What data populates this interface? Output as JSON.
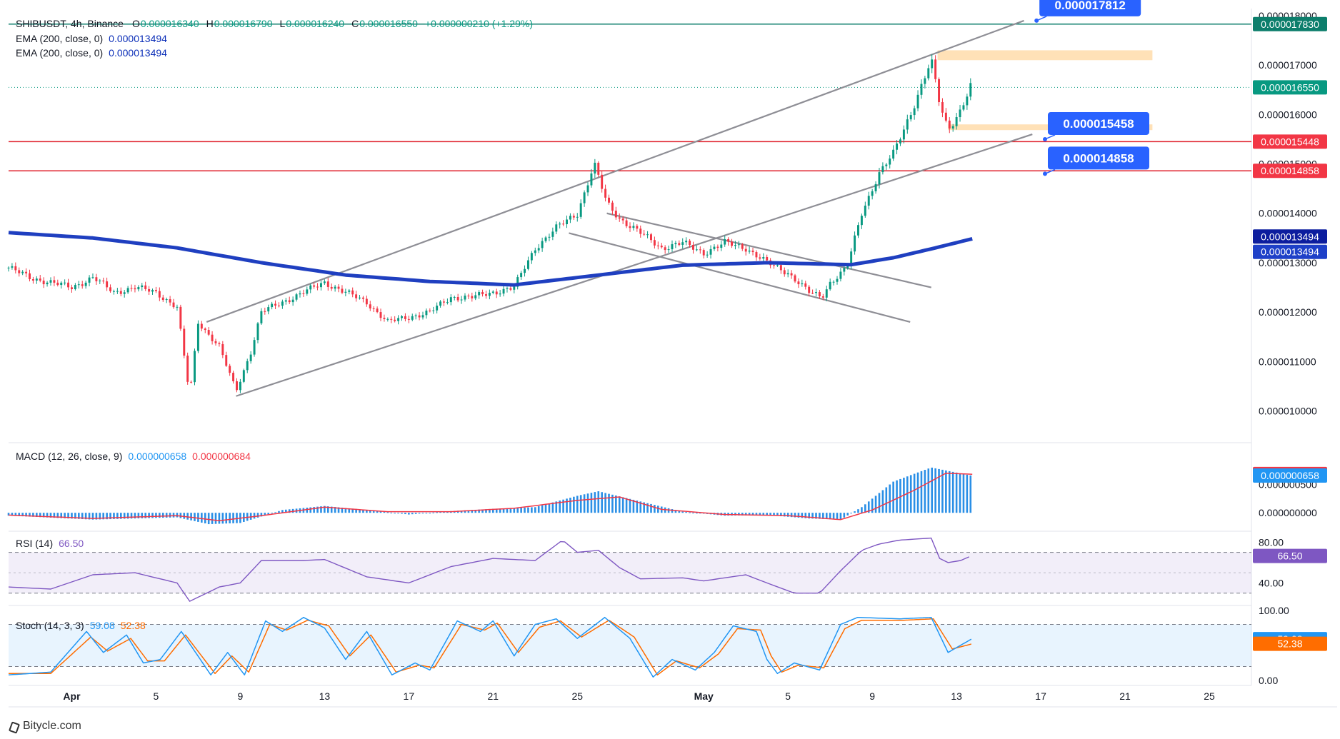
{
  "chart_data": [
    {
      "type": "candlestick",
      "panel": "price",
      "symbol": "SHIBUSDT",
      "interval": "4h",
      "exchange": "Binance",
      "header_line": "SHIBUSDT, 4h, Binance",
      "ohlc": {
        "o_label": "O",
        "o": "0.000016340",
        "h_label": "H",
        "h": "0.000016790",
        "l_label": "L",
        "l": "0.000016240",
        "c_label": "C",
        "c": "0.000016550",
        "change": "+0.000000210 (+1.29%)"
      },
      "indicators": [
        {
          "label": "EMA (200, close, 0)",
          "value": "0.000013494",
          "color": "#0c2fb8"
        },
        {
          "label": "EMA (200, close, 0)",
          "value": "0.000013494",
          "color": "#0c2fb8"
        }
      ],
      "ylim": [
        9.4e-06,
        1.8e-05
      ],
      "y_ticks": [
        "0.000018000",
        "0.000017000",
        "0.000016000",
        "0.000015000",
        "0.000014000",
        "0.000013000",
        "0.000012000",
        "0.000011000",
        "0.000010000"
      ],
      "x_ticks": [
        {
          "label": "Apr",
          "day": 1
        },
        {
          "label": "5",
          "day": 5
        },
        {
          "label": "9",
          "day": 9
        },
        {
          "label": "13",
          "day": 13
        },
        {
          "label": "17",
          "day": 17
        },
        {
          "label": "21",
          "day": 21
        },
        {
          "label": "25",
          "day": 25
        },
        {
          "label": "May",
          "day": 31
        },
        {
          "label": "5",
          "day": 35
        },
        {
          "label": "9",
          "day": 39
        },
        {
          "label": "13",
          "day": 43
        },
        {
          "label": "17",
          "day": 47
        },
        {
          "label": "21",
          "day": 51
        },
        {
          "label": "25",
          "day": 55
        }
      ],
      "x_range_days": [
        -2,
        57
      ],
      "x_note": "day index counted from Apr 1 (May 1 = 31)",
      "close_path": [
        [
          -2,
          1.29e-05
        ],
        [
          -1,
          1.27e-05
        ],
        [
          0,
          1.26e-05
        ],
        [
          1,
          1.25e-05
        ],
        [
          2,
          1.27e-05
        ],
        [
          3,
          1.24e-05
        ],
        [
          4,
          1.25e-05
        ],
        [
          5,
          1.24e-05
        ],
        [
          6,
          1.21e-05
        ],
        [
          6.6,
          1.03e-05
        ],
        [
          7,
          1.18e-05
        ],
        [
          8,
          1.13e-05
        ],
        [
          8.8,
          1.04e-05
        ],
        [
          9.5,
          1.12e-05
        ],
        [
          10,
          1.2e-05
        ],
        [
          11,
          1.22e-05
        ],
        [
          12,
          1.24e-05
        ],
        [
          13,
          1.26e-05
        ],
        [
          14,
          1.24e-05
        ],
        [
          15,
          1.22e-05
        ],
        [
          16,
          1.18e-05
        ],
        [
          17,
          1.19e-05
        ],
        [
          18,
          1.2e-05
        ],
        [
          19,
          1.23e-05
        ],
        [
          20,
          1.23e-05
        ],
        [
          21,
          1.24e-05
        ],
        [
          22,
          1.25e-05
        ],
        [
          23,
          1.33e-05
        ],
        [
          24,
          1.37e-05
        ],
        [
          25,
          1.4e-05
        ],
        [
          25.8,
          1.5e-05
        ],
        [
          26.4,
          1.42e-05
        ],
        [
          27,
          1.39e-05
        ],
        [
          28,
          1.36e-05
        ],
        [
          29,
          1.33e-05
        ],
        [
          30,
          1.34e-05
        ],
        [
          31,
          1.32e-05
        ],
        [
          32,
          1.34e-05
        ],
        [
          33,
          1.33e-05
        ],
        [
          34,
          1.3e-05
        ],
        [
          35,
          1.28e-05
        ],
        [
          36,
          1.24e-05
        ],
        [
          36.6,
          1.23e-05
        ],
        [
          37,
          1.26e-05
        ],
        [
          37.8,
          1.29e-05
        ],
        [
          38.5,
          1.4e-05
        ],
        [
          39.3,
          1.48e-05
        ],
        [
          40,
          1.52e-05
        ],
        [
          40.8,
          1.6e-05
        ],
        [
          41.8,
          1.71e-05
        ],
        [
          42.2,
          1.62e-05
        ],
        [
          42.6,
          1.57e-05
        ],
        [
          43.2,
          1.61e-05
        ],
        [
          43.7,
          1.66e-05
        ]
      ],
      "ema_path": [
        [
          -2,
          1.361e-05
        ],
        [
          2,
          1.35e-05
        ],
        [
          6,
          1.33e-05
        ],
        [
          10,
          1.3e-05
        ],
        [
          14,
          1.275e-05
        ],
        [
          18,
          1.262e-05
        ],
        [
          22,
          1.255e-05
        ],
        [
          26,
          1.275e-05
        ],
        [
          30,
          1.295e-05
        ],
        [
          34,
          1.3e-05
        ],
        [
          38,
          1.296e-05
        ],
        [
          40,
          1.31e-05
        ],
        [
          42,
          1.33e-05
        ],
        [
          43.8,
          1.349e-05
        ]
      ],
      "trendlines": [
        {
          "name": "upper-channel",
          "from": [
            7.4,
            1.18e-05
          ],
          "to": [
            46.2,
            1.79e-05
          ]
        },
        {
          "name": "lower-channel",
          "from": [
            8.8,
            1.03e-05
          ],
          "to": [
            46.6,
            1.56e-05
          ]
        },
        {
          "name": "falling-wedge-upper",
          "from": [
            26.4,
            1.4e-05
          ],
          "to": [
            41.8,
            1.25e-05
          ]
        },
        {
          "name": "falling-wedge-lower",
          "from": [
            24.6,
            1.36e-05
          ],
          "to": [
            40.8,
            1.18e-05
          ]
        }
      ],
      "horizontal_levels": [
        {
          "value": 1.783e-05,
          "label": "0.000017830",
          "color": "#0d7e6c"
        },
        {
          "value": 1.545e-05,
          "label": "0.000015448",
          "color": "#e0202b"
        },
        {
          "value": 1.486e-05,
          "label": "0.000014858",
          "color": "#e0202b"
        }
      ],
      "zones": [
        {
          "from": [
            42.1,
            1.71e-05
          ],
          "to": [
            52.3,
            1.73e-05
          ],
          "color": "#ffdcaa"
        },
        {
          "from": [
            42.6,
            1.57e-05
          ],
          "to": [
            52.3,
            1.58e-05
          ],
          "color": "#ffdcaa"
        }
      ],
      "callouts": [
        {
          "label": "0.000017812",
          "anchor": [
            46.8,
            1.79e-05
          ]
        },
        {
          "label": "0.000015458",
          "anchor": [
            47.2,
            1.55e-05
          ]
        },
        {
          "label": "0.000014858",
          "anchor": [
            47.2,
            1.48e-05
          ]
        }
      ],
      "right_badges": [
        {
          "label": "0.000017830",
          "value": 1.783e-05,
          "color": "#0d7e6c"
        },
        {
          "label": "0.000016550",
          "value": 1.655e-05,
          "color": "#089981"
        },
        {
          "label": "0.000015448",
          "value": 1.545e-05,
          "color": "#f23645"
        },
        {
          "label": "0.000014858",
          "value": 1.486e-05,
          "color": "#f23645"
        },
        {
          "label": "0.000013494",
          "value": 1.353e-05,
          "color": "#0c1d9e"
        },
        {
          "label": "0.000013494",
          "value": 1.322e-05,
          "color": "#1e40c8"
        }
      ],
      "last_price_value": 1.655e-05
    },
    {
      "type": "bar",
      "panel": "macd",
      "label": "MACD (12, 26, close, 9)",
      "macd_value": "0.000000658",
      "signal_value": "0.000000684",
      "ylim": [
        -3e-07,
        1.2e-06
      ],
      "y_ticks": [
        "0.000000500",
        "0.000000000"
      ],
      "histogram_path": [
        [
          -2,
          -5e-08
        ],
        [
          2,
          -1.2e-07
        ],
        [
          6,
          -8e-08
        ],
        [
          7.5,
          -2e-07
        ],
        [
          9,
          -1.8e-07
        ],
        [
          11,
          5e-08
        ],
        [
          13,
          1.2e-07
        ],
        [
          15,
          5e-08
        ],
        [
          17,
          -3e-08
        ],
        [
          19,
          3e-08
        ],
        [
          21,
          7e-08
        ],
        [
          23,
          1e-07
        ],
        [
          25,
          3e-07
        ],
        [
          26,
          3.8e-07
        ],
        [
          28,
          2e-07
        ],
        [
          30,
          2e-08
        ],
        [
          32,
          -5e-08
        ],
        [
          34,
          -4e-08
        ],
        [
          36,
          -1e-07
        ],
        [
          37.5,
          -1.2e-07
        ],
        [
          38.5,
          1e-07
        ],
        [
          40,
          5.5e-07
        ],
        [
          41.8,
          8e-07
        ],
        [
          43.8,
          6.5e-07
        ]
      ],
      "signal_path": [
        [
          -2,
          -4e-08
        ],
        [
          2,
          -1e-07
        ],
        [
          6,
          -5e-08
        ],
        [
          8,
          -1.4e-07
        ],
        [
          10,
          -5e-08
        ],
        [
          13,
          1e-07
        ],
        [
          16,
          2e-08
        ],
        [
          19,
          2e-08
        ],
        [
          22,
          8e-08
        ],
        [
          25,
          2.2e-07
        ],
        [
          27,
          2.8e-07
        ],
        [
          29,
          6e-08
        ],
        [
          32,
          -3e-08
        ],
        [
          35,
          -5e-08
        ],
        [
          37.5,
          -1.2e-07
        ],
        [
          39,
          5e-08
        ],
        [
          41,
          4e-07
        ],
        [
          42.5,
          7e-07
        ],
        [
          43.8,
          6.8e-07
        ]
      ],
      "right_badges": [
        {
          "label": "0.000000684",
          "value": 6.84e-07,
          "color": "#f23645"
        },
        {
          "label": "0.000000658",
          "value": 6.58e-07,
          "color": "#2196f3"
        }
      ]
    },
    {
      "type": "line",
      "panel": "rsi",
      "label": "RSI (14)",
      "value": "66.50",
      "ylim": [
        20,
        90
      ],
      "y_ticks": [
        "80.00",
        "40.00"
      ],
      "bands": [
        70,
        30
      ],
      "midline": 50,
      "path": [
        [
          -2,
          36
        ],
        [
          0,
          34
        ],
        [
          2,
          48
        ],
        [
          4,
          50
        ],
        [
          6,
          40
        ],
        [
          6.6,
          22
        ],
        [
          8,
          36
        ],
        [
          9,
          40
        ],
        [
          10,
          62
        ],
        [
          12,
          62
        ],
        [
          13,
          63
        ],
        [
          15,
          46
        ],
        [
          17,
          40
        ],
        [
          19,
          56
        ],
        [
          21,
          64
        ],
        [
          23,
          62
        ],
        [
          24.3,
          82
        ],
        [
          25,
          70
        ],
        [
          26,
          72
        ],
        [
          27,
          55
        ],
        [
          28,
          44
        ],
        [
          30,
          45
        ],
        [
          31,
          42
        ],
        [
          33,
          48
        ],
        [
          34,
          40
        ],
        [
          35.3,
          30
        ],
        [
          36.5,
          30
        ],
        [
          37.5,
          52
        ],
        [
          38.5,
          72
        ],
        [
          39.3,
          78
        ],
        [
          40.3,
          82
        ],
        [
          41.8,
          84
        ],
        [
          42.2,
          64
        ],
        [
          42.6,
          60
        ],
        [
          43.2,
          62
        ],
        [
          43.7,
          66.5
        ]
      ],
      "right_badges": [
        {
          "label": "66.50",
          "value": 66.5,
          "color": "#7e57c2"
        }
      ]
    },
    {
      "type": "line",
      "panel": "stoch",
      "label": "Stoch (14, 3, 3)",
      "k_value": "59.08",
      "d_value": "52.38",
      "ylim": [
        -5,
        105
      ],
      "y_ticks": [
        "100.00",
        "0.00"
      ],
      "bands": [
        80,
        20
      ],
      "k_path": [
        [
          -2,
          8
        ],
        [
          0,
          12
        ],
        [
          1.7,
          70
        ],
        [
          2.5,
          40
        ],
        [
          3.6,
          65
        ],
        [
          4.4,
          25
        ],
        [
          5.2,
          30
        ],
        [
          6.2,
          70
        ],
        [
          7.6,
          8
        ],
        [
          8.4,
          40
        ],
        [
          9.2,
          8
        ],
        [
          10.2,
          85
        ],
        [
          11,
          70
        ],
        [
          12,
          90
        ],
        [
          13,
          75
        ],
        [
          14,
          30
        ],
        [
          15,
          70
        ],
        [
          16.2,
          8
        ],
        [
          17.3,
          25
        ],
        [
          18,
          15
        ],
        [
          19.3,
          85
        ],
        [
          20.4,
          70
        ],
        [
          21,
          85
        ],
        [
          22,
          35
        ],
        [
          23,
          80
        ],
        [
          24,
          88
        ],
        [
          25,
          60
        ],
        [
          26.3,
          90
        ],
        [
          27.5,
          60
        ],
        [
          28.6,
          5
        ],
        [
          29.5,
          30
        ],
        [
          30.6,
          15
        ],
        [
          31.5,
          40
        ],
        [
          32.4,
          78
        ],
        [
          33.5,
          70
        ],
        [
          34,
          30
        ],
        [
          34.5,
          10
        ],
        [
          35.3,
          25
        ],
        [
          36.5,
          15
        ],
        [
          37.5,
          80
        ],
        [
          38.3,
          90
        ],
        [
          40.3,
          88
        ],
        [
          41.8,
          90
        ],
        [
          42.6,
          40
        ],
        [
          43.7,
          59
        ]
      ],
      "d_path": [
        [
          -2,
          10
        ],
        [
          0,
          10
        ],
        [
          1.9,
          62
        ],
        [
          2.7,
          42
        ],
        [
          3.8,
          60
        ],
        [
          4.6,
          28
        ],
        [
          5.4,
          28
        ],
        [
          6.4,
          65
        ],
        [
          7.8,
          10
        ],
        [
          8.6,
          35
        ],
        [
          9.4,
          12
        ],
        [
          10.4,
          80
        ],
        [
          11.2,
          72
        ],
        [
          12.2,
          86
        ],
        [
          13.2,
          78
        ],
        [
          14.2,
          35
        ],
        [
          15.2,
          65
        ],
        [
          16.4,
          12
        ],
        [
          17.5,
          22
        ],
        [
          18.2,
          18
        ],
        [
          19.5,
          80
        ],
        [
          20.6,
          72
        ],
        [
          21.2,
          82
        ],
        [
          22.2,
          40
        ],
        [
          23.2,
          76
        ],
        [
          24.2,
          85
        ],
        [
          25.2,
          62
        ],
        [
          26.5,
          86
        ],
        [
          27.7,
          62
        ],
        [
          28.8,
          8
        ],
        [
          29.7,
          28
        ],
        [
          30.8,
          18
        ],
        [
          31.7,
          38
        ],
        [
          32.6,
          74
        ],
        [
          33.7,
          72
        ],
        [
          34.2,
          35
        ],
        [
          34.7,
          12
        ],
        [
          35.5,
          22
        ],
        [
          36.7,
          18
        ],
        [
          37.7,
          74
        ],
        [
          38.5,
          86
        ],
        [
          40.5,
          86
        ],
        [
          41.9,
          88
        ],
        [
          42.8,
          45
        ],
        [
          43.7,
          52
        ]
      ],
      "right_badges": [
        {
          "label": "59.08",
          "value": 59.08,
          "color": "#2196f3"
        },
        {
          "label": "52.38",
          "value": 52.38,
          "color": "#ff6d00"
        }
      ]
    }
  ],
  "footer": {
    "brand": "Bitycle.com"
  }
}
